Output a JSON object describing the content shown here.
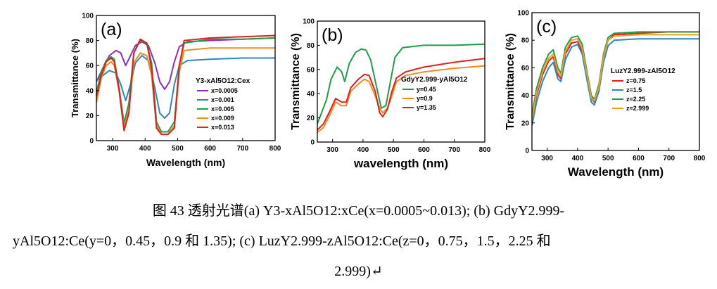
{
  "chart_data": [
    {
      "type": "line",
      "panel_label": "(a)",
      "xlabel": "Wavelength (nm)",
      "ylabel": "Transmittance (%)",
      "xlim": [
        250,
        800
      ],
      "ylim": [
        0,
        100
      ],
      "xticks": [
        "300",
        "400",
        "500",
        "600",
        "700",
        "800"
      ],
      "yticks": [
        "0",
        "20",
        "40",
        "60",
        "80",
        "100"
      ],
      "legend_title": "Y3-xAl5O12:Cex",
      "legend_position": "right-center",
      "series": [
        {
          "name": "x=0.0005",
          "color": "#8b2fb5",
          "points": [
            [
              250,
              47
            ],
            [
              270,
              58
            ],
            [
              290,
              68
            ],
            [
              310,
              72
            ],
            [
              325,
              70
            ],
            [
              340,
              60
            ],
            [
              355,
              68
            ],
            [
              370,
              76
            ],
            [
              390,
              79
            ],
            [
              410,
              76
            ],
            [
              430,
              62
            ],
            [
              445,
              47
            ],
            [
              460,
              41
            ],
            [
              475,
              47
            ],
            [
              490,
              63
            ],
            [
              505,
              75
            ],
            [
              530,
              79
            ],
            [
              600,
              80
            ],
            [
              700,
              81
            ],
            [
              800,
              82
            ]
          ]
        },
        {
          "name": "x=0.001",
          "color": "#2e86c1",
          "points": [
            [
              250,
              48
            ],
            [
              270,
              52
            ],
            [
              290,
              56
            ],
            [
              310,
              54
            ],
            [
              325,
              45
            ],
            [
              340,
              32
            ],
            [
              355,
              45
            ],
            [
              370,
              62
            ],
            [
              390,
              68
            ],
            [
              410,
              64
            ],
            [
              430,
              42
            ],
            [
              445,
              22
            ],
            [
              460,
              18
            ],
            [
              475,
              22
            ],
            [
              490,
              45
            ],
            [
              505,
              60
            ],
            [
              530,
              64
            ],
            [
              600,
              65
            ],
            [
              700,
              66
            ],
            [
              800,
              66
            ]
          ]
        },
        {
          "name": "x=0.005",
          "color": "#1e9e4a",
          "points": [
            [
              250,
              38
            ],
            [
              265,
              55
            ],
            [
              280,
              64
            ],
            [
              295,
              67
            ],
            [
              305,
              65
            ],
            [
              320,
              42
            ],
            [
              335,
              14
            ],
            [
              350,
              30
            ],
            [
              365,
              70
            ],
            [
              385,
              80
            ],
            [
              405,
              78
            ],
            [
              420,
              62
            ],
            [
              435,
              15
            ],
            [
              450,
              7
            ],
            [
              470,
              7
            ],
            [
              490,
              15
            ],
            [
              505,
              60
            ],
            [
              520,
              78
            ],
            [
              600,
              81
            ],
            [
              700,
              81
            ],
            [
              800,
              82
            ]
          ]
        },
        {
          "name": "x=0.009",
          "color": "#f28c1e",
          "points": [
            [
              250,
              30
            ],
            [
              265,
              50
            ],
            [
              280,
              60
            ],
            [
              295,
              63
            ],
            [
              305,
              60
            ],
            [
              320,
              40
            ],
            [
              335,
              10
            ],
            [
              350,
              25
            ],
            [
              365,
              62
            ],
            [
              385,
              70
            ],
            [
              405,
              68
            ],
            [
              420,
              52
            ],
            [
              435,
              12
            ],
            [
              450,
              5
            ],
            [
              470,
              5
            ],
            [
              490,
              12
            ],
            [
              505,
              55
            ],
            [
              520,
              72
            ],
            [
              600,
              74
            ],
            [
              700,
              74
            ],
            [
              800,
              74
            ]
          ]
        },
        {
          "name": "x=0.013",
          "color": "#e02020",
          "points": [
            [
              250,
              35
            ],
            [
              265,
              52
            ],
            [
              280,
              63
            ],
            [
              295,
              66
            ],
            [
              305,
              63
            ],
            [
              320,
              40
            ],
            [
              335,
              8
            ],
            [
              350,
              22
            ],
            [
              365,
              70
            ],
            [
              385,
              81
            ],
            [
              405,
              78
            ],
            [
              420,
              58
            ],
            [
              435,
              10
            ],
            [
              450,
              5
            ],
            [
              470,
              5
            ],
            [
              490,
              10
            ],
            [
              505,
              60
            ],
            [
              520,
              80
            ],
            [
              600,
              82
            ],
            [
              700,
              83
            ],
            [
              800,
              84
            ]
          ]
        }
      ]
    },
    {
      "type": "line",
      "panel_label": "(b)",
      "xlabel": "wavelength (nm)",
      "ylabel": "Transmittance (%)",
      "xlim": [
        250,
        800
      ],
      "ylim": [
        0,
        100
      ],
      "xticks": [
        "300",
        "400",
        "500",
        "600",
        "700",
        "800"
      ],
      "yticks": [
        "0",
        "20",
        "40",
        "60",
        "80",
        "100"
      ],
      "legend_title": "GdyY2.999-yAl5O12",
      "legend_position": "right-center",
      "series": [
        {
          "name": "y=0.45",
          "color": "#1e9e4a",
          "points": [
            [
              250,
              15
            ],
            [
              265,
              25
            ],
            [
              280,
              35
            ],
            [
              295,
              52
            ],
            [
              315,
              62
            ],
            [
              330,
              58
            ],
            [
              340,
              50
            ],
            [
              355,
              65
            ],
            [
              375,
              74
            ],
            [
              395,
              77
            ],
            [
              410,
              76
            ],
            [
              425,
              68
            ],
            [
              445,
              45
            ],
            [
              460,
              28
            ],
            [
              475,
              30
            ],
            [
              490,
              50
            ],
            [
              505,
              70
            ],
            [
              530,
              78
            ],
            [
              600,
              80
            ],
            [
              700,
              80
            ],
            [
              800,
              81
            ]
          ]
        },
        {
          "name": "y=0.9",
          "color": "#f28c1e",
          "points": [
            [
              250,
              8
            ],
            [
              270,
              12
            ],
            [
              290,
              22
            ],
            [
              310,
              33
            ],
            [
              330,
              30
            ],
            [
              345,
              30
            ],
            [
              360,
              42
            ],
            [
              385,
              48
            ],
            [
              405,
              52
            ],
            [
              420,
              50
            ],
            [
              440,
              38
            ],
            [
              455,
              28
            ],
            [
              465,
              24
            ],
            [
              480,
              28
            ],
            [
              495,
              38
            ],
            [
              510,
              50
            ],
            [
              540,
              55
            ],
            [
              600,
              58
            ],
            [
              700,
              61
            ],
            [
              800,
              63
            ]
          ]
        },
        {
          "name": "y=1.35",
          "color": "#e02020",
          "points": [
            [
              250,
              10
            ],
            [
              270,
              15
            ],
            [
              290,
              25
            ],
            [
              310,
              36
            ],
            [
              330,
              33
            ],
            [
              345,
              33
            ],
            [
              360,
              45
            ],
            [
              385,
              52
            ],
            [
              405,
              56
            ],
            [
              420,
              55
            ],
            [
              440,
              42
            ],
            [
              455,
              24
            ],
            [
              465,
              21
            ],
            [
              480,
              27
            ],
            [
              495,
              42
            ],
            [
              510,
              53
            ],
            [
              540,
              58
            ],
            [
              600,
              62
            ],
            [
              700,
              66
            ],
            [
              800,
              69
            ]
          ]
        }
      ]
    },
    {
      "type": "line",
      "panel_label": "(c)",
      "xlabel": "Wavelength (nm)",
      "ylabel": "Transmittance (%)",
      "xlim": [
        250,
        800
      ],
      "ylim": [
        0,
        100
      ],
      "xticks": [
        "300",
        "400",
        "500",
        "600",
        "700",
        "800"
      ],
      "yticks": [
        "0",
        "20",
        "40",
        "60",
        "80",
        "100"
      ],
      "legend_title": "LuzY2.999-zAl5O12",
      "legend_position": "center",
      "series": [
        {
          "name": "z=0.75",
          "color": "#e02020",
          "points": [
            [
              250,
              20
            ],
            [
              265,
              40
            ],
            [
              285,
              55
            ],
            [
              305,
              65
            ],
            [
              320,
              68
            ],
            [
              335,
              55
            ],
            [
              345,
              52
            ],
            [
              360,
              70
            ],
            [
              380,
              78
            ],
            [
              400,
              79
            ],
            [
              415,
              72
            ],
            [
              430,
              55
            ],
            [
              445,
              38
            ],
            [
              455,
              35
            ],
            [
              470,
              45
            ],
            [
              485,
              68
            ],
            [
              500,
              80
            ],
            [
              520,
              84
            ],
            [
              600,
              85
            ],
            [
              700,
              86
            ],
            [
              800,
              86
            ]
          ]
        },
        {
          "name": "z=1.5",
          "color": "#2e86c1",
          "points": [
            [
              250,
              18
            ],
            [
              265,
              35
            ],
            [
              285,
              50
            ],
            [
              305,
              60
            ],
            [
              320,
              64
            ],
            [
              335,
              52
            ],
            [
              345,
              50
            ],
            [
              360,
              66
            ],
            [
              380,
              75
            ],
            [
              400,
              77
            ],
            [
              415,
              70
            ],
            [
              430,
              52
            ],
            [
              445,
              35
            ],
            [
              455,
              33
            ],
            [
              470,
              43
            ],
            [
              485,
              64
            ],
            [
              500,
              76
            ],
            [
              520,
              80
            ],
            [
              600,
              81
            ],
            [
              700,
              81
            ],
            [
              800,
              81
            ]
          ]
        },
        {
          "name": "z=2.25",
          "color": "#1e9e4a",
          "points": [
            [
              250,
              25
            ],
            [
              265,
              45
            ],
            [
              285,
              60
            ],
            [
              305,
              70
            ],
            [
              320,
              73
            ],
            [
              335,
              60
            ],
            [
              345,
              56
            ],
            [
              360,
              75
            ],
            [
              380,
              82
            ],
            [
              400,
              83
            ],
            [
              415,
              77
            ],
            [
              430,
              58
            ],
            [
              445,
              40
            ],
            [
              455,
              37
            ],
            [
              470,
              48
            ],
            [
              485,
              70
            ],
            [
              500,
              82
            ],
            [
              520,
              85
            ],
            [
              600,
              86
            ],
            [
              700,
              86
            ],
            [
              800,
              86
            ]
          ]
        },
        {
          "name": "z=2.999",
          "color": "#f2a01e",
          "points": [
            [
              250,
              22
            ],
            [
              265,
              42
            ],
            [
              285,
              57
            ],
            [
              305,
              67
            ],
            [
              320,
              70
            ],
            [
              335,
              57
            ],
            [
              345,
              54
            ],
            [
              360,
              72
            ],
            [
              380,
              80
            ],
            [
              400,
              81
            ],
            [
              415,
              74
            ],
            [
              430,
              56
            ],
            [
              445,
              38
            ],
            [
              455,
              36
            ],
            [
              470,
              46
            ],
            [
              485,
              68
            ],
            [
              500,
              80
            ],
            [
              520,
              83
            ],
            [
              600,
              84
            ],
            [
              700,
              84
            ],
            [
              800,
              84
            ]
          ]
        }
      ]
    }
  ],
  "caption": {
    "line1": "图 43  透射光谱(a) Y3-xAl5O12:xCe(x=0.0005~0.013); (b) GdyY2.999-",
    "line2": "yAl5O12:Ce(y=0，0.45，0.9 和 1.35); (c) LuzY2.999-zAl5O12:Ce(z=0，0.75，1.5，2.25 和",
    "line3": "2.999)↵"
  }
}
